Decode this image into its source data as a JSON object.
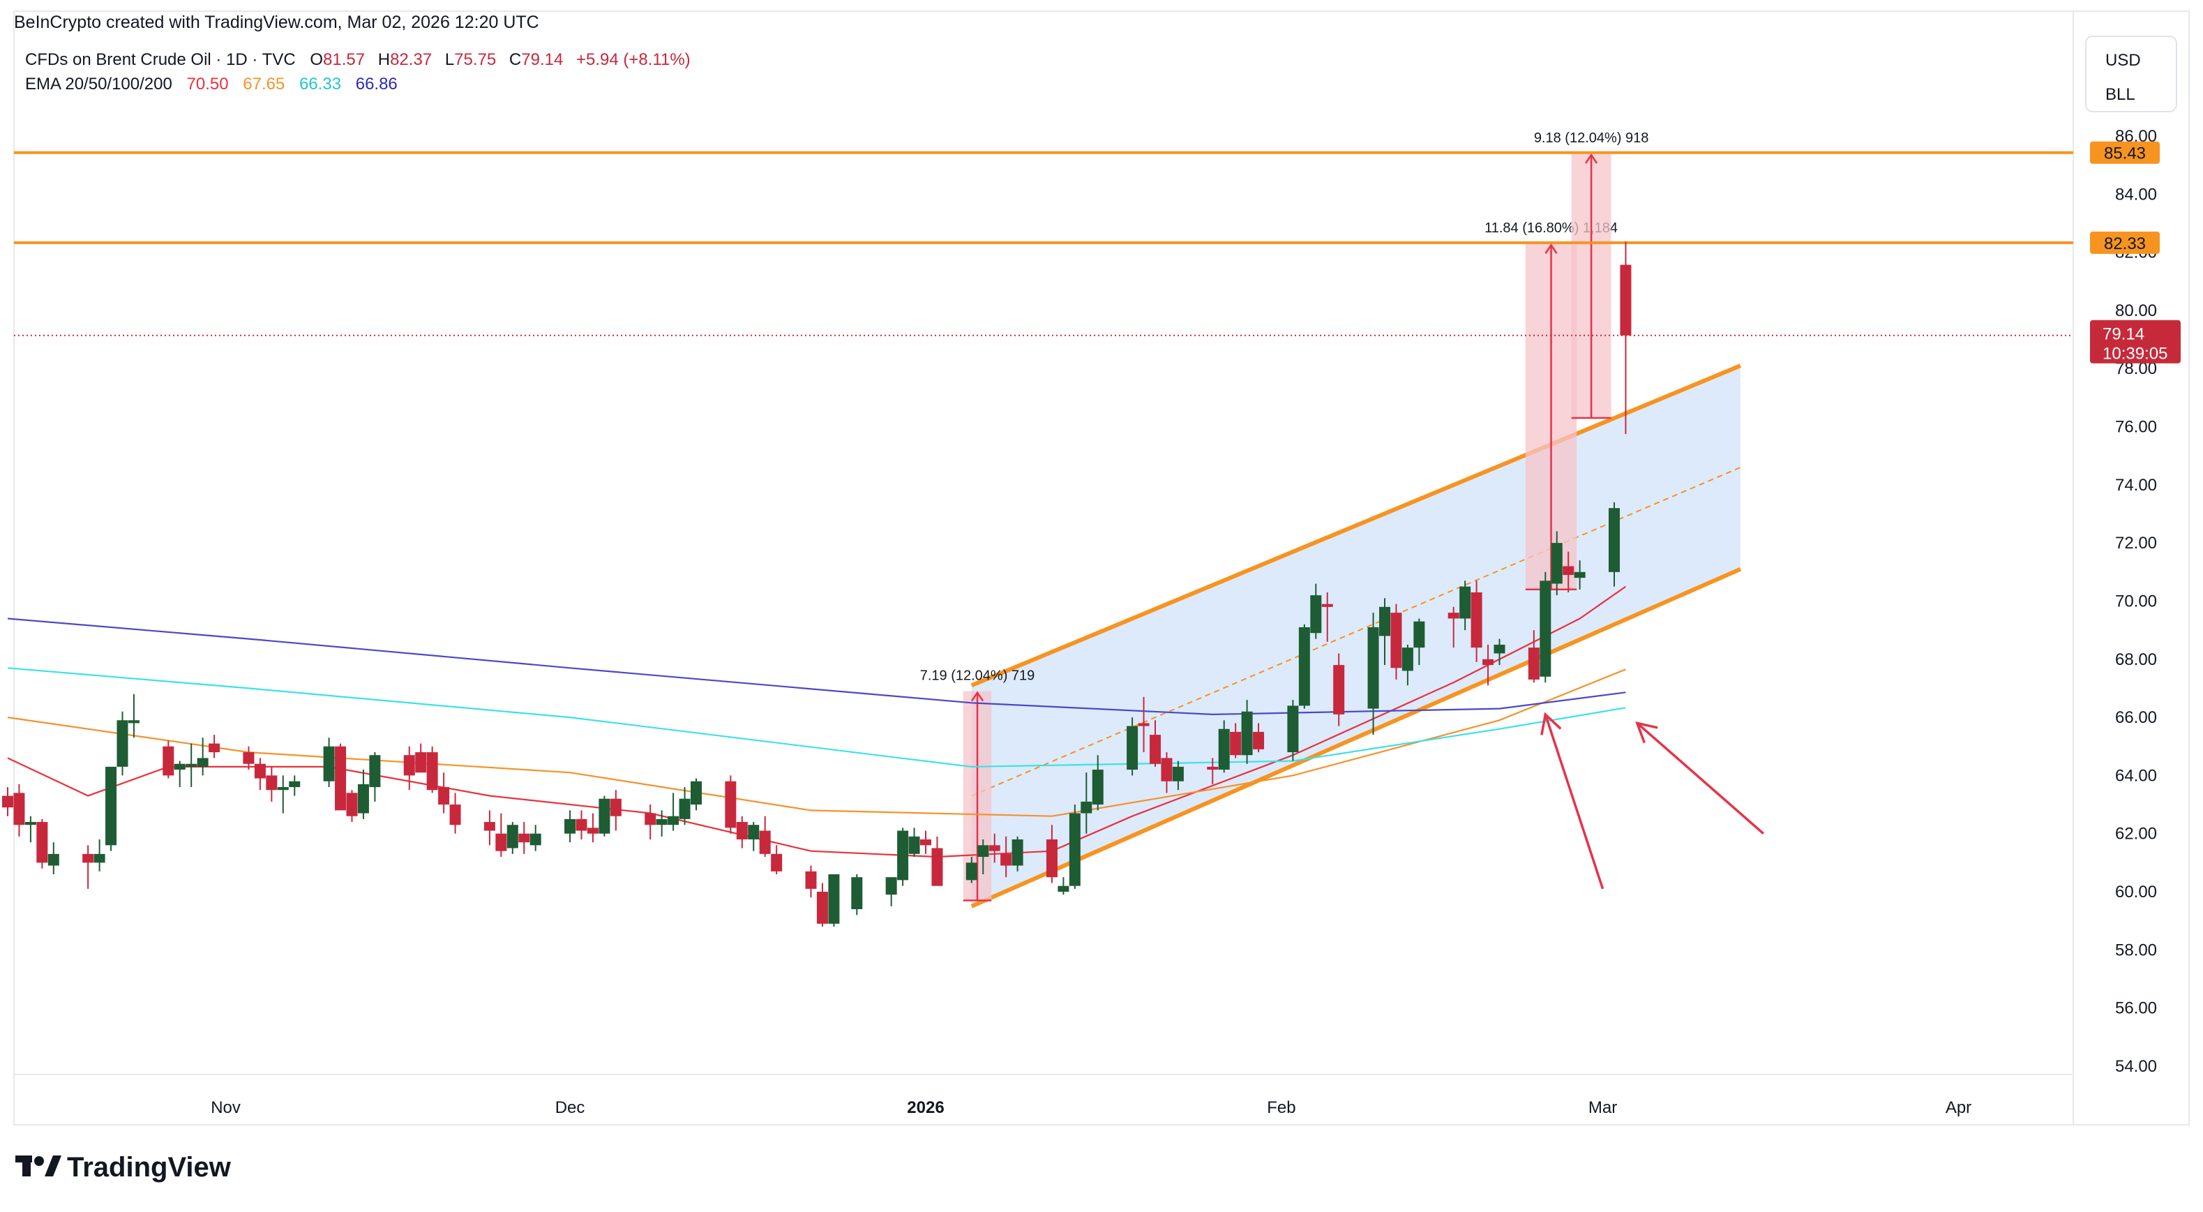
{
  "header": {
    "attribution": "BeInCrypto created with TradingView.com, Mar 02, 2026 12:20 UTC",
    "symbol_line": "CFDs on Brent Crude Oil · 1D · TVC",
    "ohlc": {
      "o_label": "O",
      "o_value": "81.57",
      "h_label": "H",
      "h_value": "82.37",
      "l_label": "L",
      "l_value": "75.75",
      "c_label": "C",
      "c_value": "79.14",
      "change": "+5.94 (+8.11%)"
    },
    "ema_label": "EMA 20/50/100/200",
    "ema_values": [
      "70.50",
      "67.65",
      "66.33",
      "66.86"
    ]
  },
  "currency_box": {
    "currency": "USD",
    "unit": "BLL"
  },
  "footer": {
    "logo_text": "TradingView"
  },
  "colors": {
    "bull": "#1e5c34",
    "bear": "#c8283c",
    "ema20": "#e8323c",
    "ema50": "#f5922a",
    "ema100": "#3ee0e8",
    "ema200": "#4a48c8",
    "channel": "#f79420",
    "channel_fill": "#d6e6fa",
    "levels": "#f79420",
    "measure_fill": "#f6c4c9",
    "arrow": "#e63347"
  },
  "chart_data": {
    "type": "candlestick",
    "y_axis": {
      "ticks": [
        "86.00",
        "84.00",
        "82.00",
        "80.00",
        "78.00",
        "76.00",
        "74.00",
        "72.00",
        "70.00",
        "68.00",
        "66.00",
        "64.00",
        "62.00",
        "60.00",
        "58.00",
        "56.00",
        "54.00"
      ],
      "range": [
        53,
        87.5
      ]
    },
    "x_axis": {
      "labels": [
        "Nov",
        "Dec",
        "2026",
        "Feb",
        "Mar",
        "Apr"
      ]
    },
    "current_price": {
      "value": "79.14",
      "countdown": "10:39:05"
    },
    "levels": [
      {
        "value": 85.43,
        "label": "85.43"
      },
      {
        "value": 82.33,
        "label": "82.33"
      }
    ],
    "ascending_channel": {
      "start_date": "2026-01-05",
      "end_date": "2026-03-13",
      "upper_start": 67.1,
      "upper_end": 78.1,
      "lower_start": 59.5,
      "lower_end": 71.1
    },
    "measurements": [
      {
        "label": "7.19 (12.04%) 719",
        "date_from": "2026-01-05",
        "date_to": "2026-01-06",
        "from": 59.7,
        "to": 66.9
      },
      {
        "label": "11.84 (16.80%) 1,184",
        "date_from": "2026-02-23",
        "date_to": "2026-02-26",
        "from": 70.4,
        "to": 82.3
      },
      {
        "label": "9.18 (12.04%) 918",
        "date_from": "2026-02-27",
        "date_to": "2026-03-01",
        "from": 76.3,
        "to": 85.4
      }
    ],
    "candles": [
      {
        "d": "2025-10-13",
        "o": 63.3,
        "h": 63.6,
        "l": 62.6,
        "c": 62.9
      },
      {
        "d": "2025-10-14",
        "o": 63.4,
        "h": 63.7,
        "l": 61.9,
        "c": 62.3
      },
      {
        "d": "2025-10-15",
        "o": 62.3,
        "h": 62.6,
        "l": 61.7,
        "c": 62.4
      },
      {
        "d": "2025-10-16",
        "o": 62.4,
        "h": 62.5,
        "l": 60.8,
        "c": 61.0
      },
      {
        "d": "2025-10-17",
        "o": 60.9,
        "h": 61.7,
        "l": 60.6,
        "c": 61.3
      },
      {
        "d": "2025-10-20",
        "o": 61.3,
        "h": 61.6,
        "l": 60.1,
        "c": 61.0
      },
      {
        "d": "2025-10-21",
        "o": 61.0,
        "h": 61.8,
        "l": 60.7,
        "c": 61.3
      },
      {
        "d": "2025-10-22",
        "o": 61.6,
        "h": 64.2,
        "l": 61.4,
        "c": 64.3
      },
      {
        "d": "2025-10-23",
        "o": 64.3,
        "h": 66.2,
        "l": 64.0,
        "c": 65.9
      },
      {
        "d": "2025-10-24",
        "o": 65.8,
        "h": 66.8,
        "l": 65.3,
        "c": 65.9
      },
      {
        "d": "2025-10-27",
        "o": 65.0,
        "h": 65.2,
        "l": 63.9,
        "c": 64.0
      },
      {
        "d": "2025-10-28",
        "o": 64.2,
        "h": 64.5,
        "l": 63.6,
        "c": 64.4
      },
      {
        "d": "2025-10-29",
        "o": 64.3,
        "h": 65.1,
        "l": 63.6,
        "c": 64.4
      },
      {
        "d": "2025-10-30",
        "o": 64.3,
        "h": 65.3,
        "l": 64.0,
        "c": 64.6
      },
      {
        "d": "2025-10-31",
        "o": 65.1,
        "h": 65.4,
        "l": 64.6,
        "c": 64.8
      },
      {
        "d": "2025-11-03",
        "o": 64.8,
        "h": 65.0,
        "l": 64.2,
        "c": 64.4
      },
      {
        "d": "2025-11-04",
        "o": 64.4,
        "h": 64.6,
        "l": 63.5,
        "c": 63.9
      },
      {
        "d": "2025-11-05",
        "o": 64.0,
        "h": 64.3,
        "l": 63.1,
        "c": 63.5
      },
      {
        "d": "2025-11-06",
        "o": 63.5,
        "h": 64.0,
        "l": 62.7,
        "c": 63.6
      },
      {
        "d": "2025-11-07",
        "o": 63.6,
        "h": 64.0,
        "l": 63.3,
        "c": 63.8
      },
      {
        "d": "2025-11-10",
        "o": 63.8,
        "h": 65.3,
        "l": 63.6,
        "c": 65.0
      },
      {
        "d": "2025-11-11",
        "o": 65.0,
        "h": 65.1,
        "l": 63.0,
        "c": 62.8
      },
      {
        "d": "2025-11-12",
        "o": 63.4,
        "h": 63.5,
        "l": 62.4,
        "c": 62.6
      },
      {
        "d": "2025-11-13",
        "o": 62.7,
        "h": 64.2,
        "l": 62.5,
        "c": 63.7
      },
      {
        "d": "2025-11-14",
        "o": 63.6,
        "h": 64.8,
        "l": 63.1,
        "c": 64.7
      },
      {
        "d": "2025-11-17",
        "o": 64.7,
        "h": 65.0,
        "l": 63.5,
        "c": 64.0
      },
      {
        "d": "2025-11-18",
        "o": 64.8,
        "h": 65.1,
        "l": 64.2,
        "c": 64.1
      },
      {
        "d": "2025-11-19",
        "o": 64.8,
        "h": 65.0,
        "l": 63.4,
        "c": 63.5
      },
      {
        "d": "2025-11-20",
        "o": 63.6,
        "h": 64.1,
        "l": 62.7,
        "c": 63.0
      },
      {
        "d": "2025-11-21",
        "o": 63.0,
        "h": 63.4,
        "l": 62.0,
        "c": 62.3
      },
      {
        "d": "2025-11-24",
        "o": 62.4,
        "h": 62.8,
        "l": 61.6,
        "c": 62.1
      },
      {
        "d": "2025-11-25",
        "o": 62.0,
        "h": 62.7,
        "l": 61.2,
        "c": 61.4
      },
      {
        "d": "2025-11-26",
        "o": 61.5,
        "h": 62.4,
        "l": 61.3,
        "c": 62.3
      },
      {
        "d": "2025-11-27",
        "o": 62.0,
        "h": 62.4,
        "l": 61.3,
        "c": 61.7
      },
      {
        "d": "2025-11-28",
        "o": 61.6,
        "h": 62.3,
        "l": 61.4,
        "c": 62.0
      },
      {
        "d": "2025-12-01",
        "o": 62.0,
        "h": 62.8,
        "l": 61.7,
        "c": 62.5
      },
      {
        "d": "2025-12-02",
        "o": 62.5,
        "h": 62.8,
        "l": 61.8,
        "c": 62.1
      },
      {
        "d": "2025-12-03",
        "o": 62.2,
        "h": 62.7,
        "l": 61.7,
        "c": 62.0
      },
      {
        "d": "2025-12-04",
        "o": 62.0,
        "h": 63.3,
        "l": 61.9,
        "c": 63.2
      },
      {
        "d": "2025-12-05",
        "o": 63.2,
        "h": 63.5,
        "l": 62.1,
        "c": 62.6
      },
      {
        "d": "2025-12-08",
        "o": 62.7,
        "h": 63.0,
        "l": 61.8,
        "c": 62.3
      },
      {
        "d": "2025-12-09",
        "o": 62.3,
        "h": 62.8,
        "l": 61.9,
        "c": 62.5
      },
      {
        "d": "2025-12-10",
        "o": 62.3,
        "h": 63.4,
        "l": 62.1,
        "c": 62.6
      },
      {
        "d": "2025-12-11",
        "o": 62.5,
        "h": 63.6,
        "l": 62.3,
        "c": 63.2
      },
      {
        "d": "2025-12-12",
        "o": 63.0,
        "h": 63.9,
        "l": 62.8,
        "c": 63.8
      },
      {
        "d": "2025-12-15",
        "o": 63.8,
        "h": 64.0,
        "l": 62.0,
        "c": 62.2
      },
      {
        "d": "2025-12-16",
        "o": 62.4,
        "h": 62.6,
        "l": 61.5,
        "c": 61.8
      },
      {
        "d": "2025-12-17",
        "o": 61.8,
        "h": 62.4,
        "l": 61.4,
        "c": 62.3
      },
      {
        "d": "2025-12-18",
        "o": 62.1,
        "h": 62.6,
        "l": 61.2,
        "c": 61.3
      },
      {
        "d": "2025-12-19",
        "o": 61.3,
        "h": 61.6,
        "l": 60.6,
        "c": 60.7
      },
      {
        "d": "2025-12-22",
        "o": 60.7,
        "h": 60.9,
        "l": 59.8,
        "c": 60.1
      },
      {
        "d": "2025-12-23",
        "o": 60.0,
        "h": 60.3,
        "l": 58.8,
        "c": 58.9
      },
      {
        "d": "2025-12-24",
        "o": 58.9,
        "h": 60.6,
        "l": 58.8,
        "c": 60.6
      },
      {
        "d": "2025-12-26",
        "o": 59.4,
        "h": 60.6,
        "l": 59.2,
        "c": 60.5
      },
      {
        "d": "2025-12-29",
        "o": 59.9,
        "h": 60.5,
        "l": 59.5,
        "c": 60.5
      },
      {
        "d": "2025-12-30",
        "o": 60.4,
        "h": 62.2,
        "l": 60.2,
        "c": 62.1
      },
      {
        "d": "2025-12-31",
        "o": 61.3,
        "h": 62.2,
        "l": 61.2,
        "c": 61.9
      },
      {
        "d": "2026-01-01",
        "o": 61.8,
        "h": 62.1,
        "l": 61.3,
        "c": 61.6
      },
      {
        "d": "2026-01-02",
        "o": 61.5,
        "h": 61.9,
        "l": 60.2,
        "c": 60.2
      },
      {
        "d": "2026-01-05",
        "o": 60.4,
        "h": 61.2,
        "l": 60.3,
        "c": 61.0
      },
      {
        "d": "2026-01-06",
        "o": 61.2,
        "h": 61.8,
        "l": 60.6,
        "c": 61.6
      },
      {
        "d": "2026-01-07",
        "o": 61.6,
        "h": 62.0,
        "l": 61.0,
        "c": 61.4
      },
      {
        "d": "2026-01-08",
        "o": 61.3,
        "h": 61.9,
        "l": 60.5,
        "c": 60.9
      },
      {
        "d": "2026-01-09",
        "o": 60.9,
        "h": 61.9,
        "l": 60.7,
        "c": 61.8
      },
      {
        "d": "2026-01-12",
        "o": 61.8,
        "h": 62.3,
        "l": 60.3,
        "c": 60.5
      },
      {
        "d": "2026-01-13",
        "o": 60.0,
        "h": 60.5,
        "l": 59.9,
        "c": 60.2
      },
      {
        "d": "2026-01-14",
        "o": 60.2,
        "h": 63.0,
        "l": 60.1,
        "c": 62.7
      },
      {
        "d": "2026-01-15",
        "o": 62.7,
        "h": 64.1,
        "l": 62.0,
        "c": 63.1
      },
      {
        "d": "2026-01-16",
        "o": 63.0,
        "h": 64.7,
        "l": 62.8,
        "c": 64.2
      },
      {
        "d": "2026-01-19",
        "o": 64.2,
        "h": 66.0,
        "l": 64.0,
        "c": 65.7
      },
      {
        "d": "2026-01-20",
        "o": 65.8,
        "h": 66.7,
        "l": 64.8,
        "c": 65.7
      },
      {
        "d": "2026-01-21",
        "o": 65.4,
        "h": 65.9,
        "l": 64.3,
        "c": 64.4
      },
      {
        "d": "2026-01-22",
        "o": 64.6,
        "h": 64.8,
        "l": 63.4,
        "c": 63.8
      },
      {
        "d": "2026-01-23",
        "o": 63.8,
        "h": 64.5,
        "l": 63.5,
        "c": 64.3
      },
      {
        "d": "2026-01-26",
        "o": 64.3,
        "h": 64.6,
        "l": 63.7,
        "c": 64.2
      },
      {
        "d": "2026-01-27",
        "o": 64.2,
        "h": 65.9,
        "l": 64.1,
        "c": 65.6
      },
      {
        "d": "2026-01-28",
        "o": 65.5,
        "h": 65.8,
        "l": 64.6,
        "c": 64.7
      },
      {
        "d": "2026-01-29",
        "o": 64.7,
        "h": 66.6,
        "l": 64.4,
        "c": 66.2
      },
      {
        "d": "2026-01-30",
        "o": 65.5,
        "h": 65.8,
        "l": 64.8,
        "c": 64.9
      },
      {
        "d": "2026-02-02",
        "o": 64.8,
        "h": 66.6,
        "l": 64.5,
        "c": 66.4
      },
      {
        "d": "2026-02-03",
        "o": 66.4,
        "h": 69.2,
        "l": 66.3,
        "c": 69.1
      },
      {
        "d": "2026-02-04",
        "o": 68.9,
        "h": 70.6,
        "l": 68.7,
        "c": 70.2
      },
      {
        "d": "2026-02-05",
        "o": 69.9,
        "h": 70.3,
        "l": 68.6,
        "c": 69.8
      },
      {
        "d": "2026-02-06",
        "o": 67.8,
        "h": 68.2,
        "l": 65.7,
        "c": 66.1
      },
      {
        "d": "2026-02-09",
        "o": 66.3,
        "h": 69.6,
        "l": 65.4,
        "c": 69.1
      },
      {
        "d": "2026-02-10",
        "o": 68.8,
        "h": 70.1,
        "l": 67.8,
        "c": 69.8
      },
      {
        "d": "2026-02-11",
        "o": 69.6,
        "h": 69.9,
        "l": 67.3,
        "c": 67.7
      },
      {
        "d": "2026-02-12",
        "o": 67.6,
        "h": 68.5,
        "l": 67.1,
        "c": 68.4
      },
      {
        "d": "2026-02-13",
        "o": 68.4,
        "h": 69.4,
        "l": 67.8,
        "c": 69.3
      },
      {
        "d": "2026-02-16",
        "o": 69.6,
        "h": 69.8,
        "l": 68.4,
        "c": 69.4
      },
      {
        "d": "2026-02-17",
        "o": 69.4,
        "h": 70.7,
        "l": 69.0,
        "c": 70.5
      },
      {
        "d": "2026-02-18",
        "o": 70.3,
        "h": 70.7,
        "l": 67.9,
        "c": 68.4
      },
      {
        "d": "2026-02-19",
        "o": 68.0,
        "h": 68.5,
        "l": 67.1,
        "c": 67.8
      },
      {
        "d": "2026-02-20",
        "o": 68.2,
        "h": 68.7,
        "l": 67.8,
        "c": 68.5
      },
      {
        "d": "2026-02-23",
        "o": 68.4,
        "h": 69.0,
        "l": 67.2,
        "c": 67.3
      },
      {
        "d": "2026-02-24",
        "o": 67.4,
        "h": 71.0,
        "l": 67.2,
        "c": 70.7
      },
      {
        "d": "2026-02-25",
        "o": 70.6,
        "h": 72.4,
        "l": 70.2,
        "c": 72.0
      },
      {
        "d": "2026-02-26",
        "o": 71.2,
        "h": 71.7,
        "l": 70.3,
        "c": 70.9
      },
      {
        "d": "2026-02-27",
        "o": 70.8,
        "h": 71.4,
        "l": 70.4,
        "c": 71.0
      },
      {
        "d": "2026-03-02",
        "o": 71.0,
        "h": 73.4,
        "l": 70.5,
        "c": 73.2
      },
      {
        "d": "2026-03-03",
        "o": 81.57,
        "h": 82.37,
        "l": 75.75,
        "c": 79.14
      }
    ],
    "ema": {
      "ema20": [
        [
          "2025-10-13",
          64.6
        ],
        [
          "2025-10-20",
          63.3
        ],
        [
          "2025-10-27",
          64.3
        ],
        [
          "2025-11-10",
          64.3
        ],
        [
          "2025-11-24",
          63.3
        ],
        [
          "2025-12-08",
          62.7
        ],
        [
          "2025-12-22",
          61.4
        ],
        [
          "2026-01-02",
          61.2
        ],
        [
          "2026-01-12",
          61.4
        ],
        [
          "2026-01-19",
          62.6
        ],
        [
          "2026-02-02",
          64.7
        ],
        [
          "2026-02-16",
          67.2
        ],
        [
          "2026-02-27",
          69.4
        ],
        [
          "2026-03-03",
          70.5
        ]
      ],
      "ema50": [
        [
          "2025-10-13",
          66.0
        ],
        [
          "2025-11-03",
          64.8
        ],
        [
          "2025-12-01",
          64.1
        ],
        [
          "2025-12-22",
          62.8
        ],
        [
          "2026-01-12",
          62.6
        ],
        [
          "2026-02-02",
          64.0
        ],
        [
          "2026-02-20",
          65.9
        ],
        [
          "2026-03-03",
          67.65
        ]
      ],
      "ema100": [
        [
          "2025-10-13",
          67.7
        ],
        [
          "2025-11-03",
          67.0
        ],
        [
          "2025-12-01",
          66.0
        ],
        [
          "2026-01-05",
          64.3
        ],
        [
          "2026-02-02",
          64.5
        ],
        [
          "2026-02-20",
          65.6
        ],
        [
          "2026-03-03",
          66.33
        ]
      ],
      "ema200": [
        [
          "2025-10-13",
          69.4
        ],
        [
          "2025-11-03",
          68.7
        ],
        [
          "2025-12-01",
          67.7
        ],
        [
          "2026-01-05",
          66.5
        ],
        [
          "2026-01-26",
          66.1
        ],
        [
          "2026-02-20",
          66.3
        ],
        [
          "2026-03-03",
          66.86
        ]
      ]
    },
    "arrows": [
      {
        "from_date": "2026-03-01",
        "from_price": 60.1,
        "to_date": "2026-02-24",
        "to_price": 66.1
      },
      {
        "from_date": "2026-03-15",
        "from_price": 62.0,
        "to_date": "2026-03-04",
        "to_price": 65.8
      }
    ]
  }
}
